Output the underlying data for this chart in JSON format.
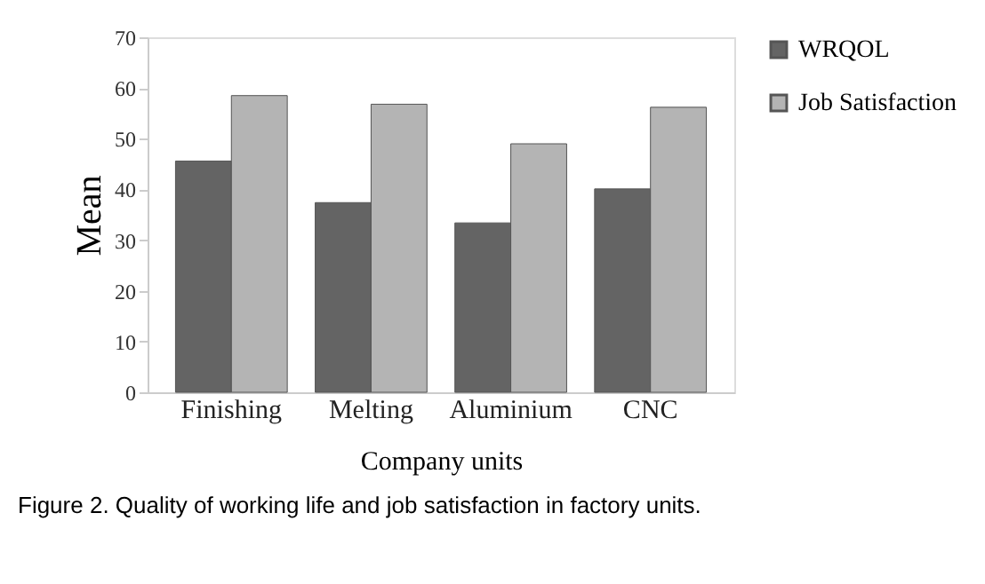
{
  "chart_data": {
    "type": "bar",
    "xlabel": "Company units",
    "ylabel": "Mean",
    "categories": [
      "Finishing",
      "Melting",
      "Aluminium",
      "CNC"
    ],
    "series": [
      {
        "name": "WRQOL",
        "color": "#646464",
        "values": [
          45.6,
          37.4,
          33.4,
          40.1
        ]
      },
      {
        "name": "Job Satisfaction",
        "color": "#b4b4b4",
        "values": [
          58.5,
          56.8,
          49.0,
          56.2
        ]
      }
    ],
    "ylim": [
      0,
      70
    ],
    "yticks": [
      0,
      10,
      20,
      30,
      40,
      50,
      60,
      70
    ],
    "grid": false,
    "legend": "right",
    "annotations": [
      "Figure 2. Quality of working life and job satisfaction in factory units."
    ]
  }
}
